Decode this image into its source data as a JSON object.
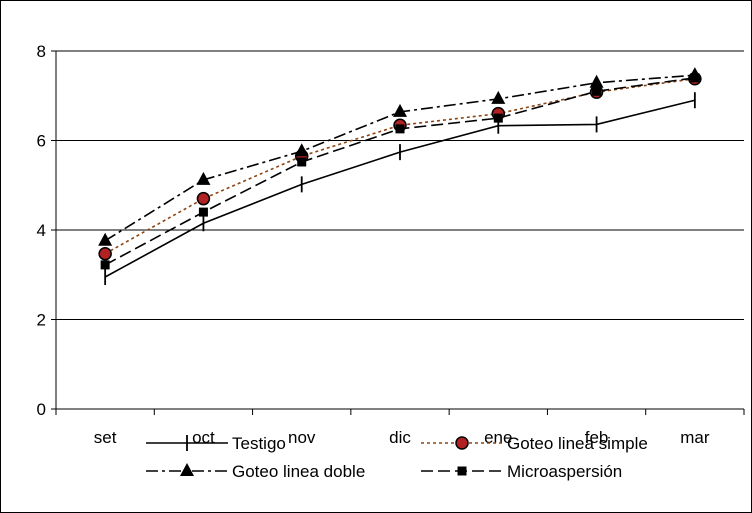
{
  "chart_data": {
    "type": "line",
    "title": "",
    "xlabel": "",
    "ylabel": "",
    "categories": [
      "set",
      "oct",
      "nov",
      "dic",
      "ene",
      "feb",
      "mar"
    ],
    "ylim": [
      0,
      8
    ],
    "yticks": [
      "0",
      "2",
      "4",
      "6",
      "8"
    ],
    "grid": "horizontal",
    "legend_position": "bottom",
    "series": [
      {
        "name": "Testigo",
        "values": [
          2.95,
          4.15,
          5.02,
          5.74,
          6.33,
          6.36,
          6.9
        ],
        "color": "#000000",
        "dash": "solid",
        "marker": "tick"
      },
      {
        "name": "Goteo linea simple",
        "values": [
          3.47,
          4.7,
          5.65,
          6.34,
          6.6,
          7.08,
          7.38
        ],
        "color": "#8B4513",
        "dash": "dotted",
        "marker": "circle",
        "marker_fill": "#B22222"
      },
      {
        "name": "Goteo linea doble",
        "values": [
          3.76,
          5.12,
          5.76,
          6.64,
          6.93,
          7.29,
          7.46
        ],
        "color": "#000000",
        "dash": "dashdot",
        "marker": "triangle"
      },
      {
        "name": "Microaspersión",
        "values": [
          3.22,
          4.4,
          5.52,
          6.26,
          6.5,
          7.1,
          7.4
        ],
        "color": "#000000",
        "dash": "dashed",
        "marker": "square"
      }
    ]
  }
}
